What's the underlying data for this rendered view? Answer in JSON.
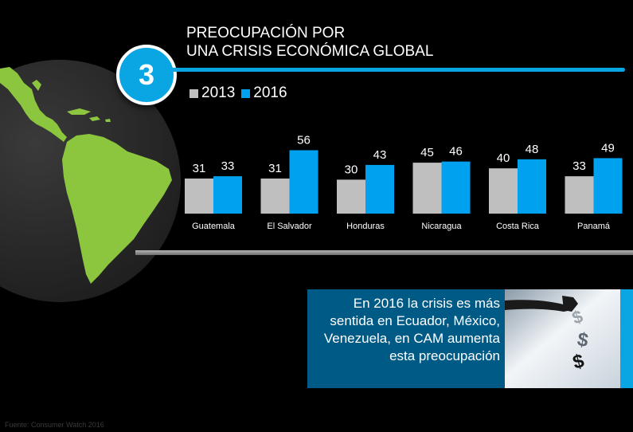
{
  "badge_number": "3",
  "title_line1": "PREOCUPACIÓN POR",
  "title_line2": "UNA CRISIS ECONÓMICA GLOBAL",
  "source": "Fuente: Consumer Watch 2016",
  "callout_text": "En 2016 la crisis es más sentida en Ecuador, México, Venezuela, en CAM aumenta esta preocupación",
  "colors": {
    "accent": "#0aa6e3",
    "bar_2013": "#bfbfbf",
    "bar_2016": "#00a2f0",
    "callout_bg": "#005a86",
    "land": "#8cc63f"
  },
  "icons": [
    "globe-americas-icon",
    "dollar-signs-photo"
  ],
  "chart_data": {
    "type": "bar",
    "categories": [
      "Guatemala",
      "El Salvador",
      "Honduras",
      "Nicaragua",
      "Costa Rica",
      "Panamá"
    ],
    "series": [
      {
        "name": "2013",
        "values": [
          31,
          31,
          30,
          45,
          40,
          33
        ]
      },
      {
        "name": "2016",
        "values": [
          33,
          56,
          43,
          46,
          48,
          49
        ]
      }
    ],
    "title": "PREOCUPACIÓN POR UNA CRISIS ECONÓMICA GLOBAL",
    "xlabel": "",
    "ylabel": "",
    "ylim": [
      0,
      60
    ],
    "grid": false,
    "legend": "top-left"
  }
}
